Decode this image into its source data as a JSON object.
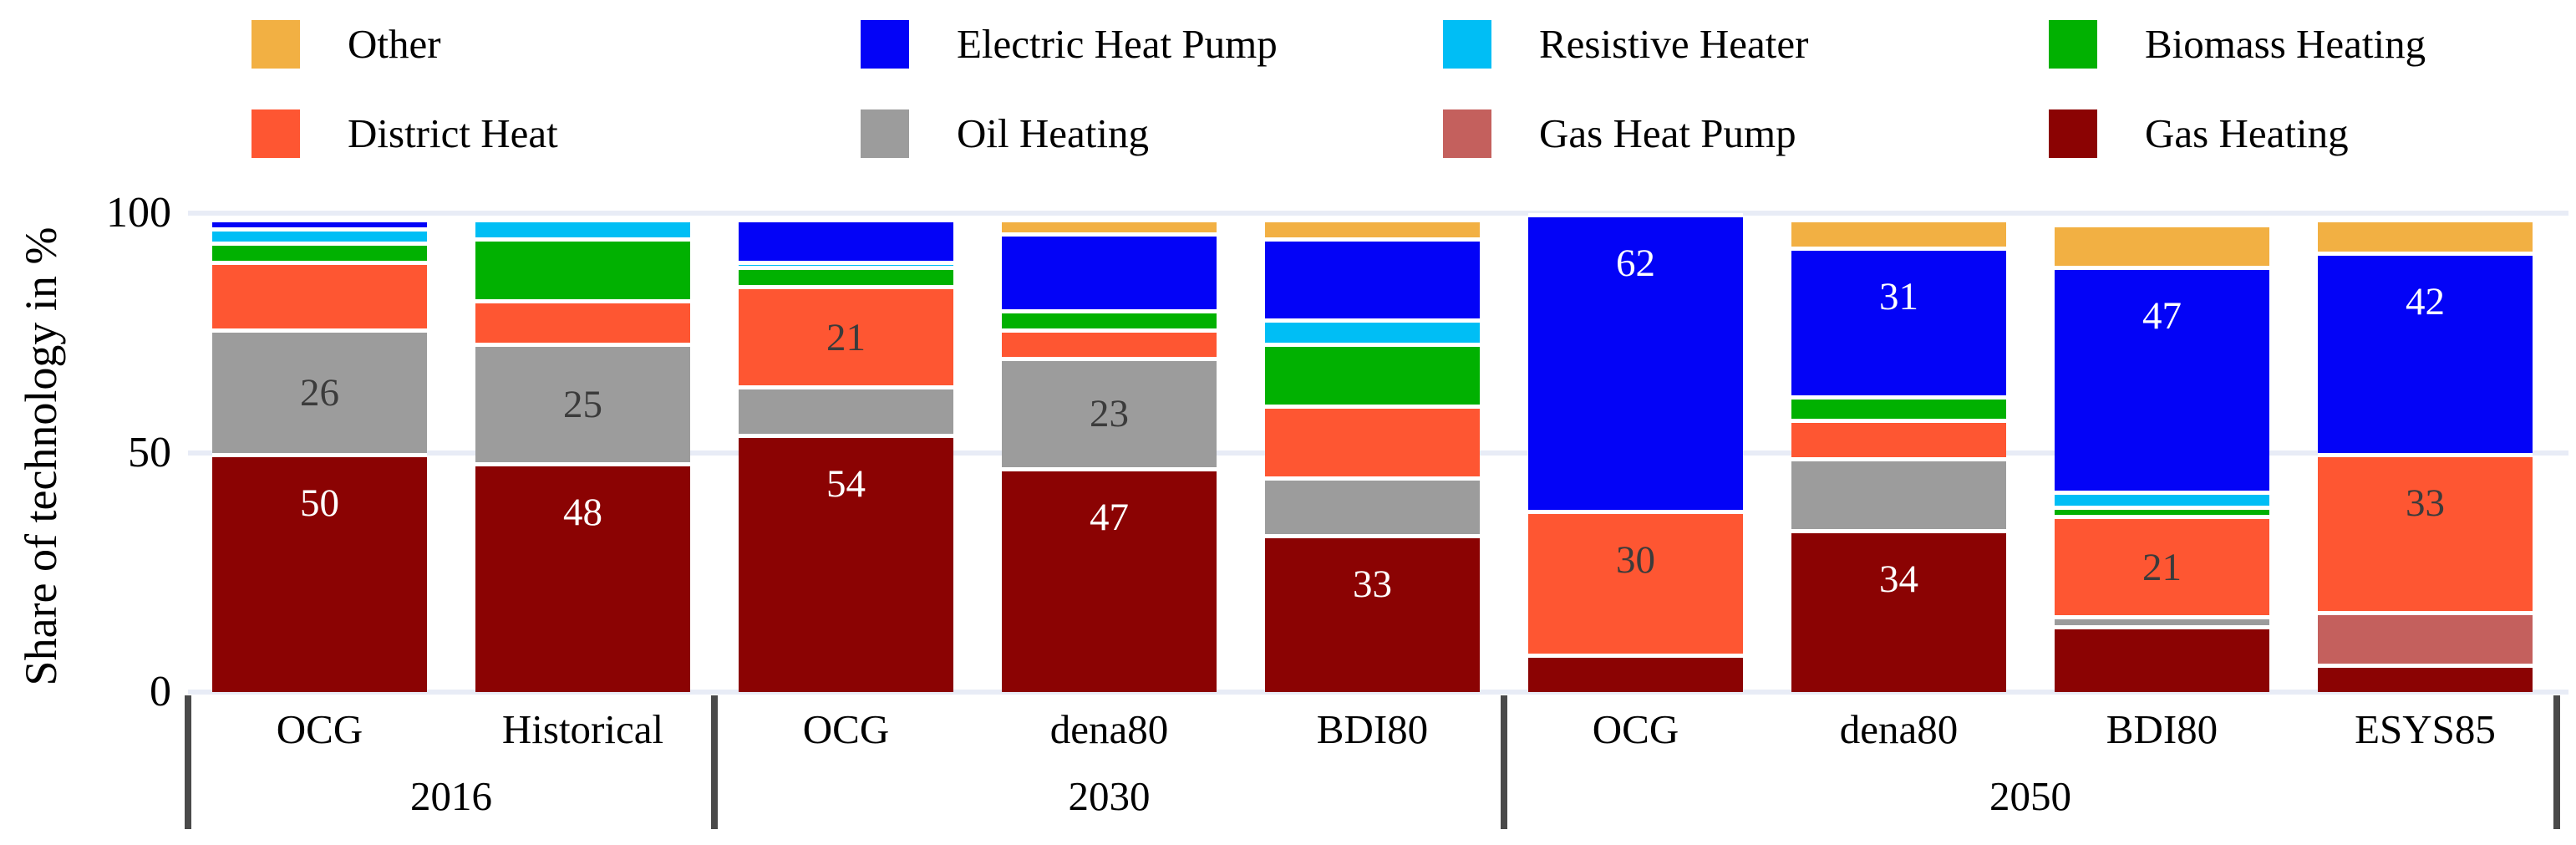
{
  "chart_data": {
    "type": "bar",
    "stacked": true,
    "orientation": "vertical",
    "title": "",
    "ylabel": "Share of technology in %",
    "ylim": [
      0,
      100
    ],
    "yticks": [
      0,
      50,
      100
    ],
    "grid": "horizontal",
    "legend_position": "top",
    "legend": [
      {
        "label": "Other",
        "color": "#F2B043",
        "row": 0,
        "col": 0
      },
      {
        "label": "Electric Heat Pump",
        "color": "#0303F7",
        "row": 0,
        "col": 1
      },
      {
        "label": "Resistive Heater",
        "color": "#00BEF5",
        "row": 0,
        "col": 2
      },
      {
        "label": "Biomass Heating",
        "color": "#01B101",
        "row": 0,
        "col": 3
      },
      {
        "label": "District Heat",
        "color": "#FE5632",
        "row": 1,
        "col": 0
      },
      {
        "label": "Oil Heating",
        "color": "#9C9C9C",
        "row": 1,
        "col": 1
      },
      {
        "label": "Gas Heat Pump",
        "color": "#C4605D",
        "row": 1,
        "col": 2
      },
      {
        "label": "Gas Heating",
        "color": "#8B0303",
        "row": 1,
        "col": 3
      }
    ],
    "stack_order_note": "segments listed bottom-to-top",
    "groups": [
      {
        "year": "2016",
        "bars": [
          {
            "scenario": "OCG",
            "segments": [
              {
                "name": "Gas Heating",
                "value": 50,
                "label": "50",
                "label_color": "light"
              },
              {
                "name": "Oil Heating",
                "value": 26,
                "label": "26",
                "label_color": "dark"
              },
              {
                "name": "District Heat",
                "value": 14
              },
              {
                "name": "Biomass Heating",
                "value": 4
              },
              {
                "name": "Resistive Heater",
                "value": 3
              },
              {
                "name": "Electric Heat Pump",
                "value": 2
              }
            ]
          },
          {
            "scenario": "Historical",
            "segments": [
              {
                "name": "Gas Heating",
                "value": 48,
                "label": "48",
                "label_color": "light"
              },
              {
                "name": "Oil Heating",
                "value": 25,
                "label": "25",
                "label_color": "dark"
              },
              {
                "name": "District Heat",
                "value": 9
              },
              {
                "name": "Biomass Heating",
                "value": 13
              },
              {
                "name": "Resistive Heater",
                "value": 4
              }
            ]
          }
        ]
      },
      {
        "year": "2030",
        "bars": [
          {
            "scenario": "OCG",
            "segments": [
              {
                "name": "Gas Heating",
                "value": 54,
                "label": "54",
                "label_color": "light"
              },
              {
                "name": "Oil Heating",
                "value": 10
              },
              {
                "name": "District Heat",
                "value": 21,
                "label": "21",
                "label_color": "dark"
              },
              {
                "name": "Biomass Heating",
                "value": 4
              },
              {
                "name": "Resistive Heater",
                "value": 1
              },
              {
                "name": "Electric Heat Pump",
                "value": 9
              }
            ]
          },
          {
            "scenario": "dena80",
            "segments": [
              {
                "name": "Gas Heating",
                "value": 47,
                "label": "47",
                "label_color": "light"
              },
              {
                "name": "Oil Heating",
                "value": 23,
                "label": "23",
                "label_color": "dark"
              },
              {
                "name": "District Heat",
                "value": 6
              },
              {
                "name": "Biomass Heating",
                "value": 4
              },
              {
                "name": "Electric Heat Pump",
                "value": 16
              },
              {
                "name": "Other",
                "value": 3
              }
            ]
          },
          {
            "scenario": "BDI80",
            "segments": [
              {
                "name": "Gas Heating",
                "value": 33,
                "label": "33",
                "label_color": "light"
              },
              {
                "name": "Oil Heating",
                "value": 12
              },
              {
                "name": "District Heat",
                "value": 15
              },
              {
                "name": "Biomass Heating",
                "value": 13
              },
              {
                "name": "Resistive Heater",
                "value": 5
              },
              {
                "name": "Electric Heat Pump",
                "value": 17
              },
              {
                "name": "Other",
                "value": 4
              }
            ]
          }
        ]
      },
      {
        "year": "2050",
        "bars": [
          {
            "scenario": "OCG",
            "segments": [
              {
                "name": "Gas Heating",
                "value": 8
              },
              {
                "name": "District Heat",
                "value": 30,
                "label": "30",
                "label_color": "dark"
              },
              {
                "name": "Electric Heat Pump",
                "value": 62,
                "label": "62",
                "label_color": "light"
              }
            ]
          },
          {
            "scenario": "dena80",
            "segments": [
              {
                "name": "Gas Heating",
                "value": 34,
                "label": "34",
                "label_color": "light"
              },
              {
                "name": "Oil Heating",
                "value": 15
              },
              {
                "name": "District Heat",
                "value": 8
              },
              {
                "name": "Biomass Heating",
                "value": 5
              },
              {
                "name": "Electric Heat Pump",
                "value": 31,
                "label": "31",
                "label_color": "light"
              },
              {
                "name": "Other",
                "value": 6
              }
            ]
          },
          {
            "scenario": "BDI80",
            "segments": [
              {
                "name": "Gas Heating",
                "value": 14
              },
              {
                "name": "Oil Heating",
                "value": 2
              },
              {
                "name": "District Heat",
                "value": 21,
                "label": "21",
                "label_color": "dark"
              },
              {
                "name": "Biomass Heating",
                "value": 2
              },
              {
                "name": "Resistive Heater",
                "value": 3
              },
              {
                "name": "Electric Heat Pump",
                "value": 47,
                "label": "47",
                "label_color": "light"
              },
              {
                "name": "Other",
                "value": 9
              }
            ]
          },
          {
            "scenario": "ESYS85",
            "segments": [
              {
                "name": "Gas Heating",
                "value": 6
              },
              {
                "name": "Gas Heat Pump",
                "value": 11
              },
              {
                "name": "District Heat",
                "value": 33,
                "label": "33",
                "label_color": "dark"
              },
              {
                "name": "Electric Heat Pump",
                "value": 42,
                "label": "42",
                "label_color": "light"
              },
              {
                "name": "Other",
                "value": 7
              }
            ]
          }
        ]
      }
    ],
    "colors": {
      "label_light": "#FFFFFF",
      "label_dark": "#3B3B3B",
      "gridline": "#E8ECF6",
      "divider": "#4A4A4A"
    }
  }
}
